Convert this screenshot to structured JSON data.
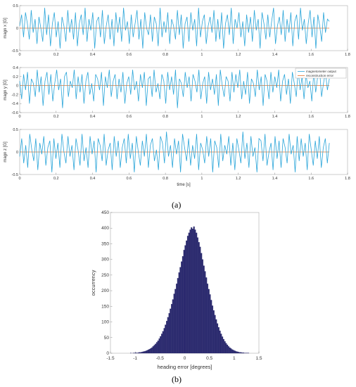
{
  "panels": {
    "a": "(a)",
    "b": "(b)"
  },
  "chart_data": [
    {
      "type": "line",
      "panel": "a",
      "xlabel": "",
      "ylabel": "magn x [G]",
      "xlim": [
        0,
        1.8
      ],
      "ylim": [
        -0.5,
        0.5
      ],
      "xticks": [
        0,
        0.2,
        0.4,
        0.6,
        0.8,
        1,
        1.2,
        1.4,
        1.6,
        1.8
      ],
      "yticks": [
        -0.5,
        0,
        0.5
      ],
      "series": [
        {
          "values": [
            0.05,
            0.3,
            -0.2,
            0.35,
            0.1,
            -0.25,
            0.4,
            -0.1,
            0.2,
            -0.35,
            0.25,
            0.0,
            -0.3,
            0.45,
            -0.15,
            0.3,
            -0.4,
            0.1,
            0.35,
            -0.2,
            0.15,
            -0.45,
            0.25,
            0.05,
            -0.3,
            0.4,
            -0.1,
            0.2,
            -0.25,
            0.35,
            -0.4,
            0.1,
            0.3,
            -0.15,
            0.45,
            -0.3,
            0.2,
            -0.05,
            0.35,
            -0.45,
            0.15,
            0.25,
            -0.2,
            0.4,
            -0.35,
            0.05,
            0.3,
            -0.25,
            0.2,
            -0.4,
            0.35,
            -0.1,
            0.25,
            -0.3,
            0.45,
            -0.05,
            0.15,
            -0.35,
            0.3,
            -0.2,
            0.1,
            0.4,
            -0.25,
            0.2,
            -0.45,
            0.35,
            0.0,
            -0.15,
            0.3,
            -0.3,
            0.25,
            0.1,
            -0.4,
            0.45,
            -0.2,
            0.15,
            -0.1,
            0.35,
            -0.35,
            0.2,
            0.05,
            -0.25,
            0.4,
            -0.15,
            0.3,
            -0.45,
            0.1,
            0.25,
            -0.3,
            0.35,
            -0.05,
            0.2,
            -0.4,
            0.45,
            -0.2,
            0.15,
            0.3,
            -0.35,
            0.05,
            0.25,
            -0.1,
            0.4,
            -0.3,
            0.2,
            -0.25,
            0.35,
            -0.45,
            0.1,
            0.3,
            -0.15,
            0.45,
            -0.35,
            0.2,
            0.0,
            0.35,
            -0.2,
            0.15,
            -0.4,
            0.3,
            -0.1,
            0.25,
            -0.3,
            0.4,
            -0.05,
            0.2,
            -0.45,
            0.35,
            0.1,
            -0.25,
            0.3,
            -0.2,
            0.15,
            0.45,
            -0.35,
            0.05,
            0.25,
            -0.15,
            0.4,
            -0.3,
            0.2,
            -0.1,
            0.35,
            -0.4,
            0.15,
            0.3,
            -0.25,
            0.45,
            -0.05,
            0.2,
            -0.35,
            0.1,
            0.4,
            -0.2,
            0.25,
            -0.45,
            0.3,
            0.05,
            -0.3,
            0.35,
            -0.1,
            0.2,
            0.15
          ]
        },
        {
          "values": [
            0,
            0
          ]
        }
      ]
    },
    {
      "type": "line",
      "panel": "a",
      "xlabel": "",
      "ylabel": "magn y [G]",
      "xlim": [
        0,
        1.8
      ],
      "ylim": [
        -0.6,
        0.4
      ],
      "xticks": [
        0,
        0.2,
        0.4,
        0.6,
        0.8,
        1,
        1.2,
        1.4,
        1.6,
        1.8
      ],
      "yticks": [
        -0.6,
        -0.4,
        -0.2,
        0,
        0.2,
        0.4
      ],
      "legend": [
        "magnetometer output",
        "reconstruction error"
      ],
      "legend_position": "top-right",
      "series": [
        {
          "name": "magnetometer output",
          "values": [
            0.1,
            -0.3,
            0.25,
            -0.1,
            0.3,
            -0.4,
            0.15,
            0.05,
            -0.25,
            0.35,
            -0.15,
            0.2,
            -0.45,
            0.1,
            0.3,
            -0.2,
            0.25,
            -0.35,
            0.05,
            0.35,
            -0.1,
            0.15,
            -0.5,
            0.2,
            0.3,
            -0.25,
            0.1,
            -0.05,
            0.35,
            -0.3,
            0.2,
            -0.15,
            0.25,
            -0.4,
            0.1,
            0.3,
            -0.2,
            0.05,
            -0.35,
            0.25,
            0.15,
            -0.1,
            0.3,
            -0.45,
            0.2,
            -0.05,
            0.35,
            -0.25,
            0.1,
            0.25,
            -0.3,
            0.15,
            -0.15,
            0.3,
            -0.4,
            0.05,
            0.2,
            -0.2,
            0.35,
            -0.1,
            0.1,
            -0.35,
            0.25,
            -0.05,
            0.3,
            -0.45,
            0.15,
            0.2,
            -0.25,
            0.35,
            -0.15,
            0.05,
            -0.3,
            0.25,
            0.1,
            -0.4,
            0.3,
            -0.1,
            0.2,
            -0.2,
            0.35,
            -0.5,
            0.15,
            0.05,
            -0.25,
            0.3,
            -0.05,
            0.2,
            -0.35,
            0.25,
            0.1,
            -0.15,
            0.35,
            -0.3,
            0.05,
            0.2,
            -0.4,
            0.3,
            -0.1,
            0.15,
            -0.2,
            0.25,
            -0.45,
            0.35,
            0.0,
            -0.25,
            0.2,
            0.1,
            -0.35,
            0.3,
            -0.15,
            0.25,
            -0.05,
            0.35,
            -0.3,
            0.1,
            -0.2,
            0.3,
            -0.4,
            0.15,
            0.05,
            -0.25,
            0.35,
            -0.1,
            0.2,
            -0.45,
            0.25,
            0.1,
            -0.3,
            0.3,
            -0.15,
            0.2,
            -0.05,
            0.35,
            -0.35,
            0.1,
            0.25,
            -0.2,
            0.15,
            -0.4,
            0.3,
            0.05,
            -0.25,
            0.35,
            -0.1,
            0.2,
            -0.3,
            0.25,
            -0.05,
            0.1,
            -0.35,
            0.3,
            -0.15,
            0.2,
            0.35,
            -0.25,
            0.05,
            0.3,
            -0.1,
            0.15
          ]
        },
        {
          "name": "reconstruction error",
          "values": [
            0,
            0
          ]
        }
      ]
    },
    {
      "type": "line",
      "panel": "a",
      "xlabel": "time [s]",
      "ylabel": "magn z [G]",
      "xlim": [
        0,
        1.8
      ],
      "ylim": [
        -0.5,
        0.5
      ],
      "xticks": [
        0,
        0.2,
        0.4,
        0.6,
        0.8,
        1,
        1.2,
        1.4,
        1.6,
        1.8
      ],
      "yticks": [
        -0.5,
        0,
        0.5
      ],
      "series": [
        {
          "values": [
            -0.1,
            0.3,
            -0.25,
            0.15,
            -0.35,
            0.4,
            0.05,
            -0.2,
            0.3,
            -0.4,
            0.2,
            -0.05,
            0.35,
            -0.3,
            0.1,
            0.25,
            -0.45,
            0.3,
            -0.15,
            0.2,
            -0.35,
            0.4,
            0.0,
            -0.25,
            0.35,
            -0.1,
            0.15,
            -0.4,
            0.3,
            0.05,
            -0.3,
            0.4,
            -0.2,
            0.1,
            -0.35,
            0.35,
            -0.05,
            0.25,
            -0.45,
            0.3,
            0.15,
            -0.2,
            0.4,
            -0.3,
            0.05,
            0.2,
            -0.4,
            0.35,
            -0.1,
            0.25,
            -0.35,
            0.1,
            0.3,
            -0.25,
            0.4,
            -0.15,
            0.2,
            -0.45,
            0.35,
            0.0,
            -0.3,
            0.25,
            -0.1,
            0.4,
            -0.35,
            0.15,
            0.3,
            -0.2,
            0.05,
            -0.4,
            0.35,
            0.2,
            -0.25,
            0.45,
            -0.1,
            0.15,
            -0.35,
            0.3,
            -0.05,
            0.25,
            -0.45,
            0.4,
            0.1,
            -0.2,
            0.3,
            -0.3,
            0.15,
            -0.15,
            0.4,
            -0.4,
            0.2,
            0.05,
            -0.25,
            0.35,
            -0.1,
            0.3,
            -0.45,
            0.25,
            0.1,
            -0.35,
            0.4,
            -0.2,
            0.15,
            -0.05,
            0.35,
            -0.3,
            0.2,
            -0.4,
            0.3,
            0.05,
            -0.25,
            0.45,
            -0.15,
            0.2,
            -0.35,
            0.35,
            -0.1,
            0.1,
            -0.45,
            0.3,
            0.25,
            -0.2,
            0.4,
            -0.3,
            0.0,
            0.2,
            -0.4,
            0.35,
            -0.15,
            0.25,
            -0.35,
            0.3,
            0.1,
            -0.25,
            0.4,
            -0.05,
            0.15,
            -0.45,
            0.35,
            -0.2,
            0.3,
            -0.1,
            0.2,
            -0.4,
            0.4,
            0.05,
            -0.3,
            0.25,
            -0.15,
            0.35,
            -0.35,
            0.1,
            0.3,
            -0.25,
            0.2
          ]
        },
        {
          "values": [
            0,
            0
          ]
        }
      ]
    },
    {
      "type": "bar",
      "panel": "b",
      "xlabel": "heading error [degrees]",
      "ylabel": "occurrency",
      "xlim": [
        -1.5,
        1.5
      ],
      "ylim": [
        0,
        450
      ],
      "xticks": [
        -1.5,
        -1,
        -0.5,
        0,
        0.5,
        1,
        1.5
      ],
      "yticks": [
        0,
        50,
        100,
        150,
        200,
        250,
        300,
        350,
        400,
        450
      ],
      "bar_color": "#2b2a6e",
      "bin_edges_start": -1.1,
      "bin_width": 0.025,
      "values": [
        1,
        0,
        1,
        1,
        2,
        1,
        2,
        3,
        3,
        4,
        5,
        6,
        7,
        9,
        11,
        13,
        15,
        18,
        22,
        26,
        30,
        35,
        40,
        47,
        54,
        62,
        70,
        80,
        91,
        103,
        115,
        128,
        142,
        157,
        172,
        190,
        205,
        222,
        240,
        258,
        275,
        293,
        310,
        330,
        345,
        360,
        375,
        385,
        395,
        402,
        398,
        405,
        395,
        385,
        370,
        355,
        340,
        320,
        300,
        280,
        262,
        242,
        222,
        205,
        188,
        170,
        152,
        137,
        122,
        108,
        95,
        83,
        72,
        62,
        53,
        45,
        38,
        32,
        27,
        22,
        18,
        15,
        12,
        10,
        8,
        6,
        5,
        4,
        3,
        3,
        2,
        2,
        1,
        1,
        1,
        1
      ]
    }
  ]
}
